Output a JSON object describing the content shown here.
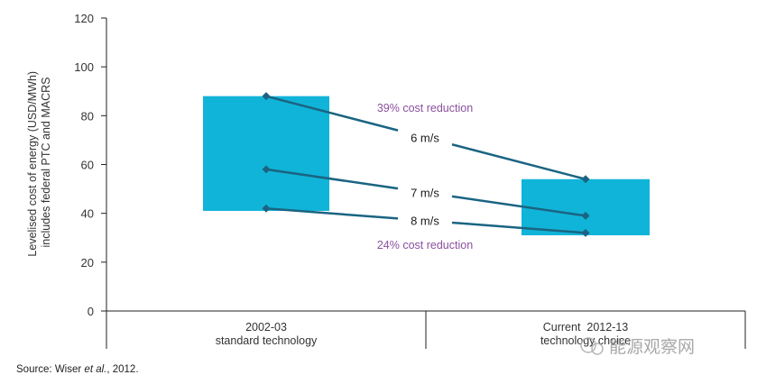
{
  "chart_data": {
    "type": "range_bar_with_lines",
    "ylabel_lines": [
      "Levelised cost of energy (USD/MWh)",
      "includes federal PTC and MACRS"
    ],
    "ylim": [
      0,
      120
    ],
    "yticks": [
      0,
      20,
      40,
      60,
      80,
      100,
      120
    ],
    "categories": [
      {
        "line1": "2002-03",
        "line2": "standard technology"
      },
      {
        "line1": "Current  2012-13",
        "line2": "technology choice"
      }
    ],
    "ranges": [
      {
        "low": 41,
        "high": 88
      },
      {
        "low": 31,
        "high": 54
      }
    ],
    "series": [
      {
        "name": "6 m/s",
        "values": [
          88,
          54
        ]
      },
      {
        "name": "7 m/s",
        "values": [
          58,
          39
        ]
      },
      {
        "name": "8 m/s",
        "values": [
          42,
          32
        ]
      }
    ],
    "annotations": [
      {
        "text": "39% cost reduction",
        "y": 83
      },
      {
        "text": "24% cost reduction",
        "y": 27
      }
    ],
    "colors": {
      "bar": "#10b4d8",
      "line": "#1a6482",
      "annotation": "#8a4f9e"
    }
  },
  "source": {
    "prefix": "Source: Wiser ",
    "italic": "et al.",
    "suffix": ", 2012."
  },
  "watermark": "能源观察网"
}
